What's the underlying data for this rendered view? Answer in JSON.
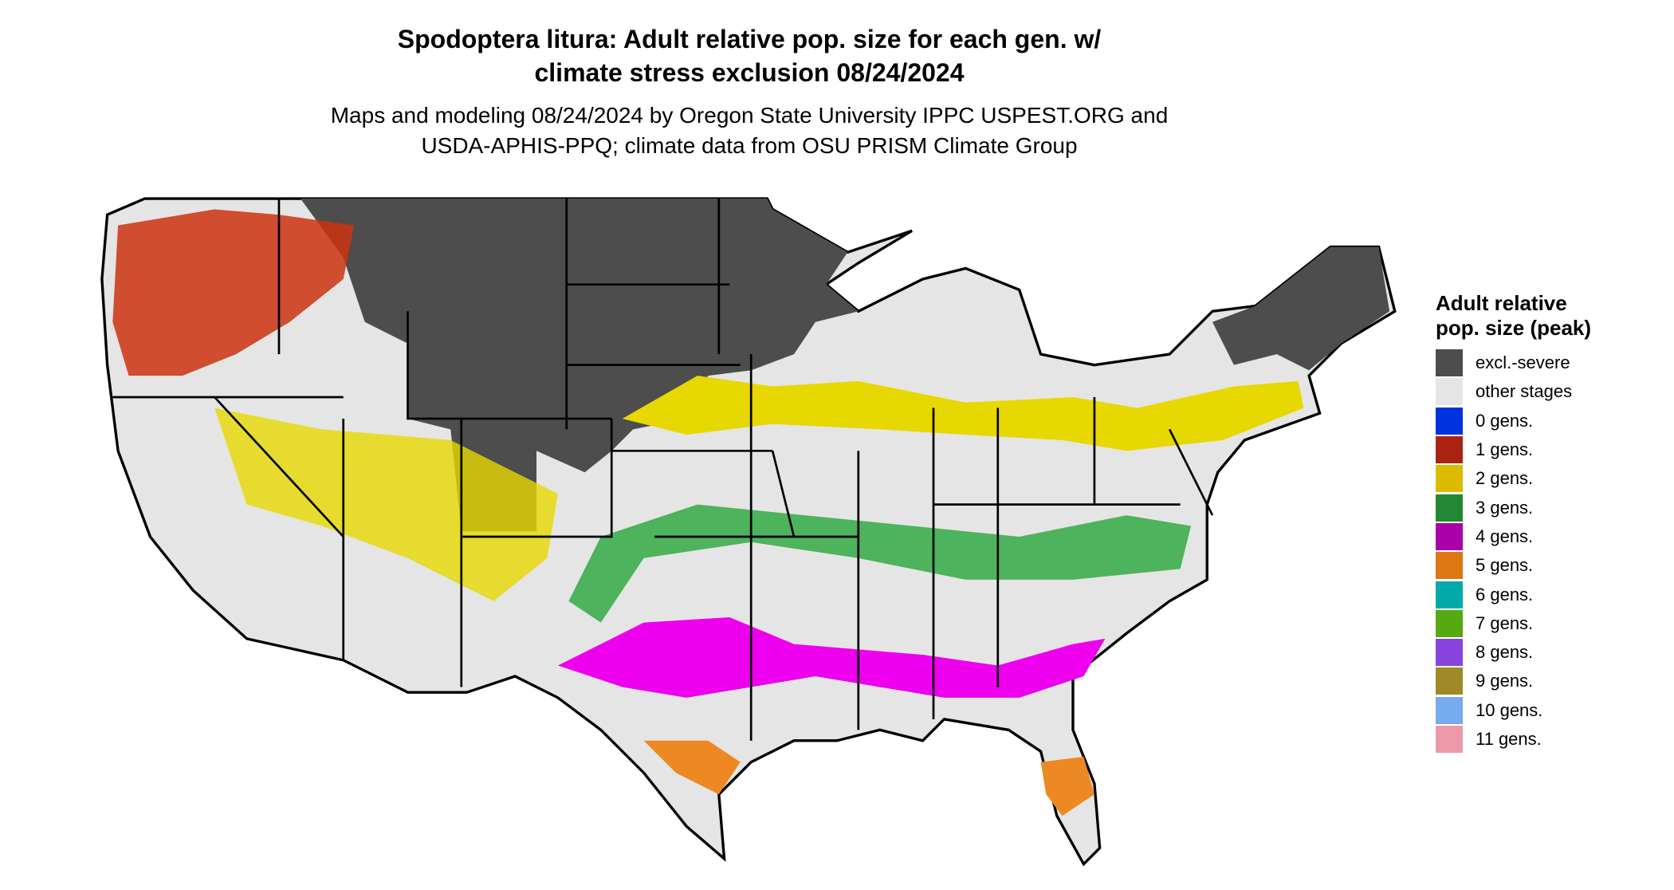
{
  "header": {
    "title_line1": "Spodoptera litura: Adult relative pop. size for each gen. w/",
    "title_line2": "climate stress exclusion 08/24/2024",
    "subtitle_line1": "Maps and modeling 08/24/2024 by Oregon State University IPPC USPEST.ORG and",
    "subtitle_line2": "USDA-APHIS-PPQ; climate data from OSU PRISM Climate Group"
  },
  "legend": {
    "title": "Adult relative pop. size (peak)",
    "items": [
      {
        "label": "excl.-severe",
        "color": "#4d4d4d"
      },
      {
        "label": "other stages",
        "color": "#e5e5e5"
      },
      {
        "label": "0 gens.",
        "color": "#0033dd"
      },
      {
        "label": "1 gens.",
        "color": "#aa2211"
      },
      {
        "label": "2 gens.",
        "color": "#ddbb00"
      },
      {
        "label": "3 gens.",
        "color": "#228833"
      },
      {
        "label": "4 gens.",
        "color": "#aa00aa"
      },
      {
        "label": "5 gens.",
        "color": "#dd7711"
      },
      {
        "label": "6 gens.",
        "color": "#00aaaa"
      },
      {
        "label": "7 gens.",
        "color": "#55aa11"
      },
      {
        "label": "8 gens.",
        "color": "#8844dd"
      },
      {
        "label": "9 gens.",
        "color": "#a08a28"
      },
      {
        "label": "10 gens.",
        "color": "#77aaee"
      },
      {
        "label": "11 gens.",
        "color": "#ee99aa"
      }
    ]
  }
}
